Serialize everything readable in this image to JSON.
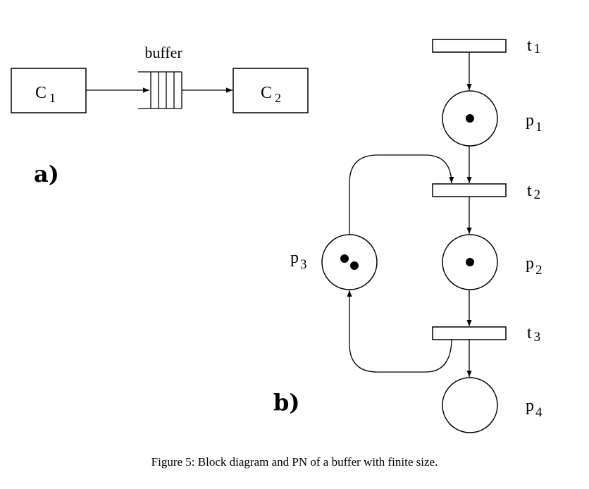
{
  "part_a": {
    "label": "a)",
    "component_1": {
      "name": "C",
      "sub": "1"
    },
    "component_2": {
      "name": "C",
      "sub": "2"
    },
    "buffer_label": "buffer"
  },
  "part_b": {
    "label": "b)",
    "transitions": [
      {
        "name": "t",
        "sub": "1"
      },
      {
        "name": "t",
        "sub": "2"
      },
      {
        "name": "t",
        "sub": "3"
      }
    ],
    "places": [
      {
        "name": "p",
        "sub": "1",
        "tokens": 1
      },
      {
        "name": "p",
        "sub": "2",
        "tokens": 1
      },
      {
        "name": "p",
        "sub": "3",
        "tokens": 2
      },
      {
        "name": "p",
        "sub": "4",
        "tokens": 0
      }
    ]
  },
  "caption": "Figure 5: Block diagram and PN of a buffer with finite size."
}
